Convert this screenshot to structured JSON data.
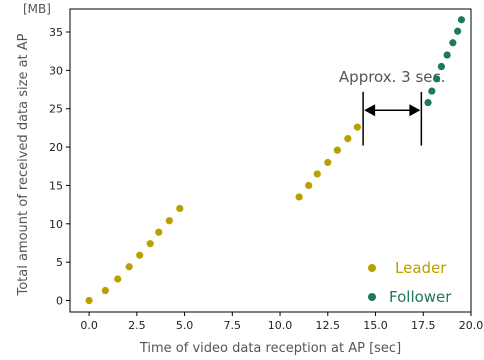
{
  "chart_data": {
    "type": "scatter",
    "xlabel": "Time of video data reception at AP [sec]",
    "ylabel": "Total amount of received data size at AP",
    "y_unit": "[MB]",
    "xlim": [
      -1,
      20
    ],
    "ylim": [
      -1.5,
      38
    ],
    "x_ticks": [
      0.0,
      2.5,
      5.0,
      7.5,
      10.0,
      12.5,
      15.0,
      17.5,
      20.0
    ],
    "x_tick_labels": [
      "0.0",
      "2.5",
      "5.0",
      "7.5",
      "10.0",
      "12.5",
      "15.0",
      "17.5",
      "20.0"
    ],
    "y_ticks": [
      0,
      5,
      10,
      15,
      20,
      25,
      30,
      35
    ],
    "y_tick_labels": [
      "0",
      "5",
      "10",
      "15",
      "20",
      "25",
      "30",
      "35"
    ],
    "grid": false,
    "legend_position": "bottom-right",
    "series": [
      {
        "name": "Leader",
        "color": "#b8a000",
        "points": [
          [
            0.0,
            0.0
          ],
          [
            0.85,
            1.3
          ],
          [
            1.5,
            2.8
          ],
          [
            2.1,
            4.4
          ],
          [
            2.65,
            5.9
          ],
          [
            3.2,
            7.4
          ],
          [
            3.65,
            8.9
          ],
          [
            4.2,
            10.4
          ],
          [
            4.75,
            12.0
          ],
          [
            11.0,
            13.5
          ],
          [
            11.5,
            15.0
          ],
          [
            11.95,
            16.5
          ],
          [
            12.5,
            18.0
          ],
          [
            13.0,
            19.6
          ],
          [
            13.55,
            21.1
          ],
          [
            14.05,
            22.6
          ]
        ]
      },
      {
        "name": "Follower",
        "color": "#1e7a52",
        "points": [
          [
            17.75,
            25.8
          ],
          [
            17.95,
            27.3
          ],
          [
            18.2,
            28.9
          ],
          [
            18.45,
            30.5
          ],
          [
            18.75,
            32.0
          ],
          [
            19.05,
            33.6
          ],
          [
            19.3,
            35.1
          ],
          [
            19.5,
            36.6
          ]
        ]
      }
    ],
    "annotations": [
      {
        "text": "Approx. 3 sec.",
        "from_x": 14.35,
        "to_x": 17.4,
        "arrow_y": 24.8,
        "line_y_range": [
          20.2,
          27.2
        ]
      }
    ]
  }
}
